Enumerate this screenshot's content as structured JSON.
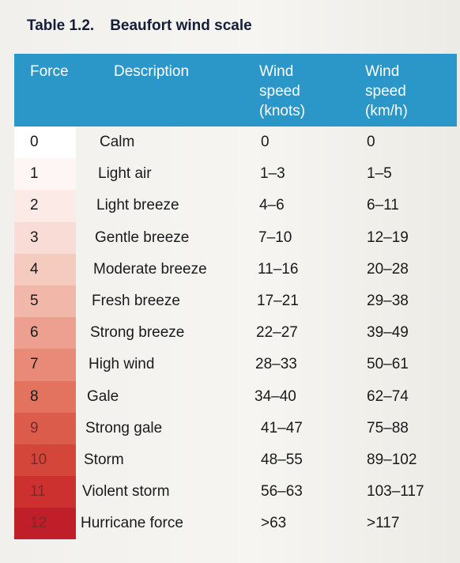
{
  "caption": {
    "number": "Table 1.2.",
    "title": "Beaufort wind scale"
  },
  "headers": {
    "force": "Force",
    "description": "Description",
    "knots_line1": "Wind",
    "knots_line2": "speed",
    "knots_line3": "(knots)",
    "kmh_line1": "Wind",
    "kmh_line2": "speed",
    "kmh_line3": "(km/h)"
  },
  "colors": {
    "header_bg": "#2b96c8",
    "force_scale": [
      "#ffffff",
      "#fdf6f4",
      "#fbeae6",
      "#f8dcd5",
      "#f5cbc0",
      "#f1b7a9",
      "#eda08f",
      "#e88a77",
      "#e3735f",
      "#dc5c4b",
      "#d5463a",
      "#cc3130",
      "#c01e29"
    ]
  },
  "rows": [
    {
      "force": "0",
      "description": "Calm",
      "knots": "0",
      "kmh": "0"
    },
    {
      "force": "1",
      "description": "Light air",
      "knots": "1–3",
      "kmh": "1–5"
    },
    {
      "force": "2",
      "description": "Light breeze",
      "knots": "4–6",
      "kmh": "6–11"
    },
    {
      "force": "3",
      "description": "Gentle breeze",
      "knots": "7–10",
      "kmh": "12–19"
    },
    {
      "force": "4",
      "description": "Moderate breeze",
      "knots": "11–16",
      "kmh": "20–28"
    },
    {
      "force": "5",
      "description": "Fresh breeze",
      "knots": "17–21",
      "kmh": "29–38"
    },
    {
      "force": "6",
      "description": "Strong breeze",
      "knots": "22–27",
      "kmh": "39–49"
    },
    {
      "force": "7",
      "description": "High wind",
      "knots": "28–33",
      "kmh": "50–61"
    },
    {
      "force": "8",
      "description": "Gale",
      "knots": "34–40",
      "kmh": "62–74"
    },
    {
      "force": "9",
      "description": "Strong gale",
      "knots": "41–47",
      "kmh": "75–88"
    },
    {
      "force": "10",
      "description": "Storm",
      "knots": "48–55",
      "kmh": "89–102"
    },
    {
      "force": "11",
      "description": "Violent storm",
      "knots": "56–63",
      "kmh": "103–117"
    },
    {
      "force": "12",
      "description": "Hurricane force",
      "knots": ">63",
      "kmh": ">117"
    }
  ]
}
